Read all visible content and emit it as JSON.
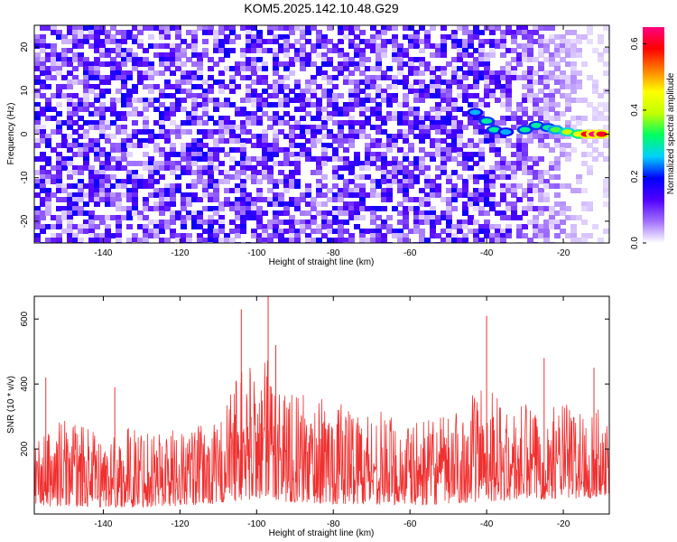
{
  "title": "KOM5.2025.142.10.48.G29",
  "chart_data": [
    {
      "type": "heatmap",
      "title": "KOM5.2025.142.10.48.G29",
      "xlabel": "Height of straight line (km)",
      "ylabel": "Frequency (Hz)",
      "xlim": [
        -158,
        -8
      ],
      "ylim": [
        -25,
        25
      ],
      "x_ticks": [
        -140,
        -120,
        -100,
        -80,
        -60,
        -40,
        -20
      ],
      "y_ticks": [
        -20,
        -10,
        0,
        10,
        20
      ],
      "x_tick_labels": [
        "-140",
        "-120",
        "-100",
        "-80",
        "-60",
        "-40",
        "-20"
      ],
      "y_tick_labels": [
        "-20",
        "-10",
        "0",
        "10",
        "20"
      ],
      "colorbar": {
        "label": "Normalized spectral amplitude",
        "range": [
          0,
          0.65
        ],
        "ticks": [
          0.0,
          0.2,
          0.4,
          0.6
        ],
        "tick_labels": [
          "0.0",
          "0.2",
          "0.4",
          "0.6"
        ],
        "colors": [
          "#ffffff",
          "#a070ff",
          "#5000ff",
          "#0000ff",
          "#00d0ff",
          "#00ff60",
          "#c0ff00",
          "#ffff00",
          "#ff8000",
          "#ff0000",
          "#ff0080"
        ]
      },
      "features": [
        {
          "label": "background noise",
          "x_range": [
            -158,
            -35
          ],
          "y_range": [
            -25,
            25
          ],
          "amplitude": 0.1
        },
        {
          "label": "signal trace",
          "points": [
            [
              -43,
              5
            ],
            [
              -40,
              3
            ],
            [
              -38,
              1
            ],
            [
              -35,
              0.5
            ],
            [
              -30,
              1
            ],
            [
              -27,
              2
            ],
            [
              -24,
              1.5
            ],
            [
              -22,
              1
            ],
            [
              -19,
              0.5
            ],
            [
              -16,
              0
            ],
            [
              -14,
              0
            ],
            [
              -12,
              0
            ],
            [
              -10,
              0
            ]
          ],
          "amplitude": [
            0.25,
            0.3,
            0.3,
            0.25,
            0.3,
            0.3,
            0.3,
            0.35,
            0.4,
            0.45,
            0.6,
            0.65,
            0.6
          ]
        }
      ]
    },
    {
      "type": "line",
      "xlabel": "Height of straight line (km)",
      "ylabel": "SNR (10 * v/v)",
      "xlim": [
        -158,
        -8
      ],
      "ylim": [
        0,
        670
      ],
      "x_ticks": [
        -140,
        -120,
        -100,
        -80,
        -60,
        -40,
        -20
      ],
      "y_ticks": [
        200,
        400,
        600
      ],
      "x_tick_labels": [
        "-140",
        "-120",
        "-100",
        "-80",
        "-60",
        "-40",
        "-20"
      ],
      "y_tick_labels": [
        "200",
        "400",
        "600"
      ],
      "color": "#f03030",
      "series": [
        {
          "envelope": {
            "x": [
              -158,
              -150,
              -140,
              -130,
              -120,
              -110,
              -105,
              -100,
              -96,
              -90,
              -80,
              -70,
              -60,
              -50,
              -45,
              -40,
              -35,
              -30,
              -25,
              -20,
              -15,
              -12,
              -8
            ],
            "y_min": [
              20,
              25,
              20,
              20,
              25,
              30,
              40,
              45,
              40,
              35,
              30,
              30,
              25,
              30,
              35,
              40,
              40,
              40,
              45,
              50,
              45,
              50,
              60
            ],
            "y_max": [
              320,
              420,
              330,
              390,
              370,
              390,
              630,
              660,
              670,
              520,
              490,
              460,
              390,
              420,
              480,
              610,
              430,
              480,
              430,
              490,
              460,
              450,
              440
            ]
          },
          "peaks": [
            [
              -155,
              420
            ],
            [
              -137,
              390
            ],
            [
              -104,
              630
            ],
            [
              -97,
              670
            ],
            [
              -95,
              520
            ],
            [
              -40,
              610
            ],
            [
              -25,
              480
            ],
            [
              -12,
              450
            ]
          ]
        }
      ]
    }
  ]
}
